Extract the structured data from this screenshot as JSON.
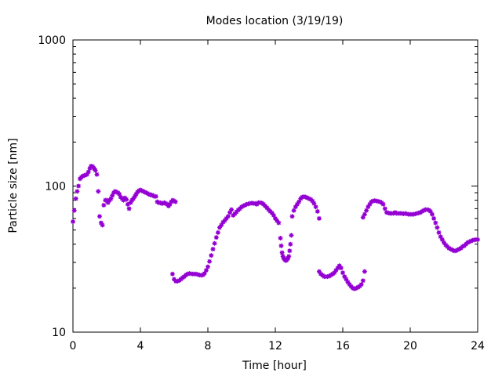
{
  "chart_data": {
    "type": "scatter",
    "title": "Modes location (3/19/19)",
    "xlabel": "Time [hour]",
    "ylabel": "Particle size [nm]",
    "xlim": [
      0,
      24
    ],
    "ylim": [
      10,
      1000
    ],
    "yscale": "log",
    "xticks": [
      0,
      4,
      8,
      12,
      16,
      20,
      24
    ],
    "xtick_labels": [
      "0",
      "4",
      "8",
      "12",
      "16",
      "20",
      "24"
    ],
    "yticks": [
      10,
      100,
      1000
    ],
    "ytick_labels": [
      "10",
      "100",
      "1000"
    ],
    "grid": false,
    "marker_color": "#9400d3",
    "series": [
      {
        "x": [
          0.0,
          0.08,
          0.17,
          0.25,
          0.33,
          0.42,
          0.5,
          0.58,
          0.67,
          0.75,
          0.83,
          0.92,
          1.0,
          1.08,
          1.17,
          1.25,
          1.33,
          1.42,
          1.5,
          1.58,
          1.67,
          1.75,
          1.83,
          1.92,
          2.0,
          2.08,
          2.17,
          2.25,
          2.33,
          2.42,
          2.5,
          2.58,
          2.67,
          2.75,
          2.83,
          2.92,
          3.0,
          3.08,
          3.17,
          3.25,
          3.33,
          3.42,
          3.5,
          3.58,
          3.67,
          3.75,
          3.83,
          3.92,
          4.0,
          4.08,
          4.17,
          4.25,
          4.33,
          4.42,
          4.5,
          4.58,
          4.67,
          4.75,
          4.83,
          4.92,
          5.0,
          5.08,
          5.17,
          5.25,
          5.33,
          5.42,
          5.5,
          5.58,
          5.67,
          5.75,
          5.83,
          5.92,
          6.0,
          6.08
        ],
        "y": [
          57,
          68,
          82,
          92,
          100,
          112,
          115,
          117,
          118,
          119,
          120,
          125,
          132,
          137,
          136,
          132,
          128,
          120,
          92,
          62,
          56,
          54,
          74,
          80,
          80,
          77,
          80,
          82,
          86,
          90,
          92,
          91,
          90,
          88,
          84,
          82,
          80,
          83,
          81,
          75,
          70,
          77,
          80,
          82,
          85,
          88,
          91,
          93,
          94,
          93,
          92,
          91,
          90,
          89,
          88,
          87,
          87,
          86,
          85,
          85,
          78,
          77,
          77,
          76,
          76,
          77,
          76,
          75,
          73,
          75,
          78,
          80,
          79,
          78
        ]
      },
      {
        "x": [
          5.9,
          6.0,
          6.1,
          6.2,
          6.3,
          6.4,
          6.5,
          6.6,
          6.7,
          6.8,
          6.9,
          7.0,
          7.1,
          7.2,
          7.3,
          7.4,
          7.5,
          7.6,
          7.7,
          7.8,
          7.9,
          8.0,
          8.1,
          8.2,
          8.3,
          8.4,
          8.5,
          8.6,
          8.7,
          8.8,
          8.9,
          9.0,
          9.1,
          9.2,
          9.3,
          9.4,
          9.5,
          9.6,
          9.7,
          9.8,
          9.9,
          10.0,
          10.1,
          10.2,
          10.3,
          10.4,
          10.5,
          10.6,
          10.7,
          10.8,
          10.9,
          11.0,
          11.1,
          11.2,
          11.3,
          11.4,
          11.5,
          11.6,
          11.7,
          11.8,
          11.9,
          12.0,
          12.1,
          12.2
        ],
        "y": [
          25,
          23,
          22.3,
          22.3,
          22.6,
          23,
          23.6,
          24,
          24.6,
          25,
          25.2,
          25.1,
          25,
          25,
          25,
          24.8,
          24.6,
          24.5,
          24.6,
          25.2,
          26.5,
          28,
          30.5,
          33.5,
          37,
          40.5,
          44.5,
          48,
          52,
          54,
          56.5,
          58,
          60,
          62,
          66,
          69,
          63,
          64.5,
          66.5,
          68.5,
          70,
          72,
          73,
          74,
          75,
          75.5,
          76,
          76.5,
          76,
          76,
          75,
          77,
          77,
          76.5,
          75,
          73,
          71,
          69,
          67,
          65.5,
          63,
          60,
          58,
          56
        ]
      },
      {
        "x": [
          12.3,
          12.35,
          12.4,
          12.45,
          12.5,
          12.55,
          12.6,
          12.65,
          12.7,
          12.75,
          12.8,
          12.85,
          12.9,
          12.95,
          13.0,
          13.1,
          13.2,
          13.3,
          13.4,
          13.5,
          13.6,
          13.7,
          13.8,
          13.9,
          14.0,
          14.1,
          14.2,
          14.3,
          14.4,
          14.5,
          14.6
        ],
        "y": [
          44,
          39,
          35,
          33,
          32,
          31.5,
          31,
          31,
          31.5,
          32,
          33,
          36,
          40,
          46,
          62,
          68,
          72,
          75,
          78,
          82,
          84,
          84.5,
          84,
          83,
          82,
          81,
          79,
          76,
          72,
          67,
          60
        ]
      },
      {
        "x": [
          14.6,
          14.7,
          14.8,
          14.9,
          15.0,
          15.1,
          15.2,
          15.3,
          15.4,
          15.5,
          15.6,
          15.7,
          15.8,
          15.9,
          16.0,
          16.1,
          16.2,
          16.3,
          16.4,
          16.5,
          16.6,
          16.7,
          16.8,
          16.9,
          17.0,
          17.1,
          17.2,
          17.3
        ],
        "y": [
          26,
          25,
          24.5,
          24,
          24,
          24,
          24.2,
          24.6,
          25,
          25.5,
          26.5,
          27.5,
          28.5,
          27.5,
          25.5,
          24,
          23,
          22,
          21.2,
          20.5,
          20,
          19.8,
          20,
          20.3,
          20.6,
          21.2,
          22.5,
          26
        ]
      },
      {
        "x": [
          17.2,
          17.3,
          17.4,
          17.5,
          17.6,
          17.7,
          17.8,
          17.9,
          18.0,
          18.1,
          18.2,
          18.3,
          18.4,
          18.5,
          18.6,
          18.7,
          18.8,
          18.9,
          19.0,
          19.1,
          19.2,
          19.3,
          19.4,
          19.5,
          19.6,
          19.7,
          19.8,
          19.9,
          20.0,
          20.1,
          20.2,
          20.3,
          20.4,
          20.5,
          20.6,
          20.7,
          20.8,
          20.9,
          21.0,
          21.1,
          21.2,
          21.3,
          21.4,
          21.5,
          21.6,
          21.7,
          21.8,
          21.9,
          22.0,
          22.1,
          22.2,
          22.3,
          22.4,
          22.5,
          22.6,
          22.7,
          22.8,
          22.9,
          23.0,
          23.1,
          23.2,
          23.3,
          23.4,
          23.5,
          23.6,
          23.7,
          23.8,
          23.9,
          24.0
        ],
        "y": [
          61,
          64,
          68,
          72,
          75,
          78,
          79,
          79.5,
          79,
          78.5,
          78,
          77,
          75,
          70,
          66,
          65.5,
          65,
          65,
          65,
          66,
          65,
          65,
          65,
          65,
          64.5,
          65,
          64.5,
          64,
          64,
          64,
          64,
          64.5,
          65,
          65.5,
          66,
          67,
          68,
          69,
          69,
          68.5,
          67,
          64,
          60,
          56,
          52,
          48,
          45,
          43,
          41,
          39.5,
          38.5,
          37.5,
          37,
          36.5,
          36,
          36,
          36.5,
          37,
          37.5,
          38.5,
          39,
          40,
          41,
          41.5,
          42,
          42.5,
          42.8,
          43,
          43
        ]
      }
    ]
  }
}
